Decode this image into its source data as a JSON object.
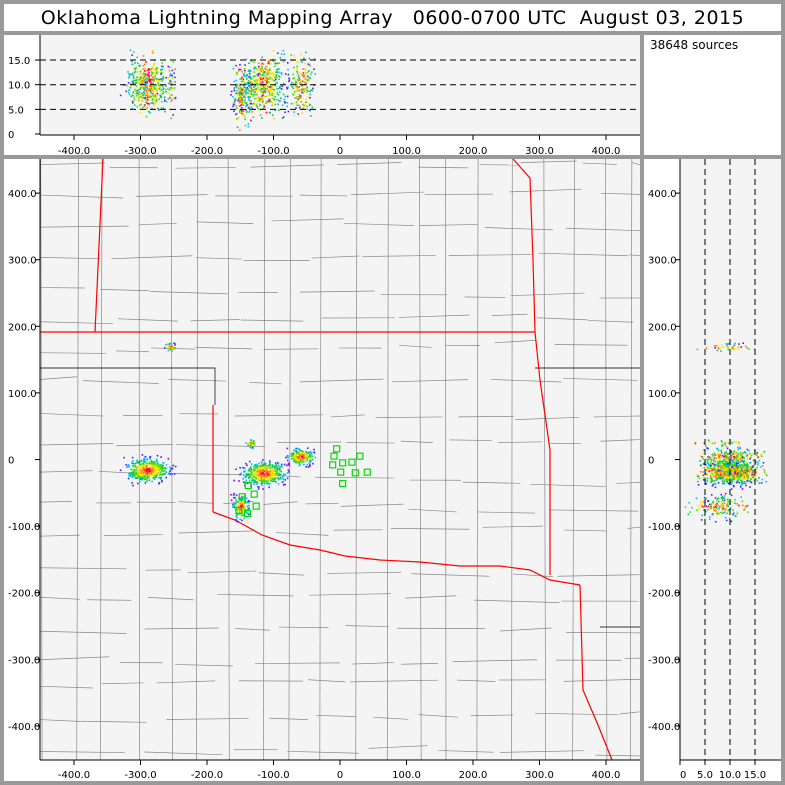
{
  "title": "Oklahoma Lightning Mapping Array   0600-0700 UTC  August 03, 2015",
  "source_count": "38648 sources",
  "colors": {
    "state_border": "#ff0000",
    "county_line": "#888888",
    "plot_bg": "#f4f4f4",
    "station": "#00dd00",
    "frame": "#999999"
  },
  "chart_data": [
    {
      "panel": "altitude-vs-east-west",
      "type": "scatter",
      "xlim": [
        -450,
        450
      ],
      "ylim": [
        0,
        20
      ],
      "xticks": [
        "-400.0",
        "-300.0",
        "-200.0",
        "-100.0",
        "0",
        "100.0",
        "200.0",
        "300.0",
        "400.0"
      ],
      "xtick_values": [
        -400,
        -300,
        -200,
        -100,
        0,
        100,
        200,
        300,
        400
      ],
      "yticks": [
        "0",
        "5.0",
        "10.0",
        "15.0"
      ],
      "ytick_values": [
        0,
        5,
        10,
        15
      ],
      "grid": "dashed horizontal at 5,10,15"
    },
    {
      "panel": "plan-view-map",
      "type": "scatter",
      "xlim": [
        -450,
        450
      ],
      "ylim": [
        -450,
        450
      ],
      "xticks": [
        "-400.0",
        "-300.0",
        "-200.0",
        "-100.0",
        "0",
        "100.0",
        "200.0",
        "300.0",
        "400.0"
      ],
      "xtick_values": [
        -400,
        -300,
        -200,
        -100,
        0,
        100,
        200,
        300,
        400
      ],
      "yticks": [
        "400.0",
        "300.0",
        "200.0",
        "100.0",
        "0",
        "-100.0",
        "-200.0",
        "-300.0",
        "-400.0"
      ],
      "ytick_values": [
        400,
        300,
        200,
        100,
        0,
        -100,
        -200,
        -300,
        -400
      ],
      "clusters": [
        {
          "x": -290,
          "y": -15,
          "alt": 10,
          "spread": [
            22,
            12
          ]
        },
        {
          "x": -255,
          "y": 170,
          "alt": 10,
          "spread": [
            6,
            4
          ]
        },
        {
          "x": -115,
          "y": -20,
          "alt": 10,
          "spread": [
            22,
            12
          ]
        },
        {
          "x": -60,
          "y": 5,
          "alt": 10,
          "spread": [
            14,
            8
          ]
        },
        {
          "x": -150,
          "y": -70,
          "alt": 8,
          "spread": [
            8,
            12
          ]
        },
        {
          "x": -135,
          "y": 25,
          "alt": 9,
          "spread": [
            5,
            4
          ]
        }
      ],
      "stations": [
        [
          -5,
          16
        ],
        [
          -9,
          5
        ],
        [
          4,
          -5
        ],
        [
          -11,
          -8
        ],
        [
          18,
          -4
        ],
        [
          30,
          5
        ],
        [
          23,
          -20
        ],
        [
          41,
          -19
        ],
        [
          4,
          -36
        ],
        [
          1,
          -19
        ],
        [
          -138,
          -39
        ],
        [
          -147,
          -56
        ],
        [
          -129,
          -52
        ],
        [
          -152,
          -77
        ],
        [
          -139,
          -81
        ],
        [
          -126,
          -70
        ]
      ]
    },
    {
      "panel": "north-south-vs-altitude",
      "type": "scatter",
      "xlim": [
        0,
        20
      ],
      "ylim": [
        -450,
        450
      ],
      "xticks": [
        "0",
        "5.0",
        "10.0",
        "15.0"
      ],
      "xtick_values": [
        0,
        5,
        10,
        15
      ],
      "yticks": [
        "400.0",
        "300.0",
        "200.0",
        "100.0",
        "0",
        "-100.0",
        "-200.0",
        "-300.0",
        "-400.0"
      ],
      "ytick_values": [
        400,
        300,
        200,
        100,
        0,
        -100,
        -200,
        -300,
        -400
      ],
      "grid": "dashed vertical at 5,10,15"
    }
  ]
}
